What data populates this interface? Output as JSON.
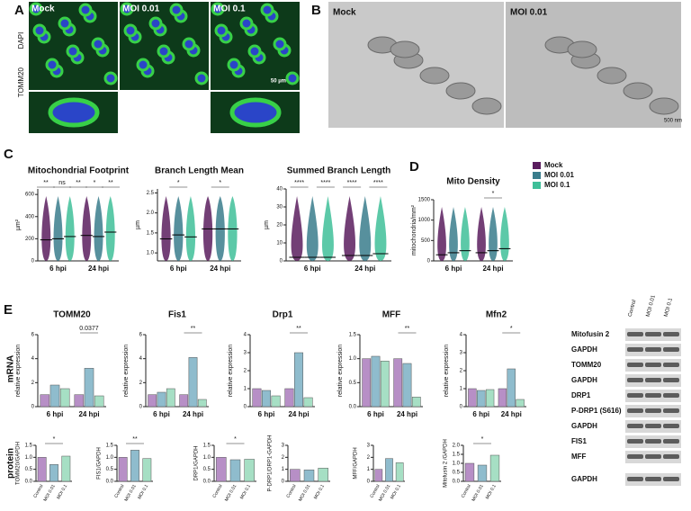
{
  "figure": {
    "A": {
      "letter": "A",
      "labels": [
        "Mock",
        "MOI 0.01",
        "MOI 0.1"
      ],
      "stains": [
        "DAPI",
        "TOMM20"
      ],
      "scale": "50 µm"
    },
    "B": {
      "letter": "B",
      "labels": [
        "Mock",
        "MOI 0.01"
      ],
      "scale": "500 nm"
    },
    "C": {
      "letter": "C"
    },
    "D": {
      "letter": "D"
    },
    "E": {
      "letter": "E",
      "rows": [
        "mRNA",
        "protein"
      ],
      "blot": {
        "columns": [
          "Control",
          "MOI 0.01",
          "MOI 0.1"
        ],
        "rows": [
          "Mitofusin 2",
          "GAPDH",
          "TOMM20",
          "GAPDH",
          "DRP1",
          "P-DRP1 (S616)",
          "GAPDH",
          "FIS1",
          "MFF",
          "GAPDH"
        ]
      }
    }
  },
  "chart_data": [
    {
      "type": "violin",
      "title": "Mitochondrial Footprint",
      "ylabel": "µm²",
      "categories": [
        "6 hpi",
        "24 hpi"
      ],
      "ylim": [
        0,
        650
      ],
      "yticks": [
        0,
        200,
        400,
        600
      ],
      "series": [
        {
          "name": "Mock",
          "color": "#5a1d5e",
          "values": [
            190,
            230
          ]
        },
        {
          "name": "MOI 0.01",
          "color": "#3a7d8c",
          "values": [
            200,
            220
          ]
        },
        {
          "name": "MOI 0.1",
          "color": "#3fbf99",
          "values": [
            220,
            260
          ]
        }
      ],
      "annotations": [
        "**",
        "ns",
        "**",
        "*",
        "**"
      ]
    },
    {
      "type": "violin",
      "title": "Branch Length Mean",
      "ylabel": "µm",
      "categories": [
        "6 hpi",
        "24 hpi"
      ],
      "ylim": [
        0.8,
        2.6
      ],
      "yticks": [
        {
          "value": 1,
          "label": "1.0"
        },
        1.5,
        {
          "value": 2,
          "label": "2.0"
        },
        2.5
      ],
      "series": [
        {
          "name": "Mock",
          "color": "#5a1d5e",
          "values": [
            1.35,
            1.6
          ]
        },
        {
          "name": "MOI 0.01",
          "color": "#3a7d8c",
          "values": [
            1.45,
            1.6
          ]
        },
        {
          "name": "MOI 0.1",
          "color": "#3fbf99",
          "values": [
            1.4,
            1.6
          ]
        }
      ],
      "annotations": [
        "*",
        "*"
      ]
    },
    {
      "type": "violin",
      "title": "Summed Branch Length",
      "ylabel": "µm",
      "categories": [
        "6 hpi",
        "24 hpi"
      ],
      "ylim": [
        0,
        40
      ],
      "yticks": [
        0,
        10,
        20,
        30,
        40
      ],
      "series": [
        {
          "name": "Mock",
          "color": "#5a1d5e",
          "values": [
            2,
            3
          ]
        },
        {
          "name": "MOI 0.01",
          "color": "#3a7d8c",
          "values": [
            2,
            3
          ]
        },
        {
          "name": "MOI 0.1",
          "color": "#3fbf99",
          "values": [
            2,
            4
          ]
        }
      ],
      "annotations": [
        "****",
        "****",
        "****",
        "****"
      ]
    },
    {
      "type": "violin",
      "title": "Mito Density",
      "ylabel": "mitochondria/mm²",
      "categories": [
        "6 hpi",
        "24 hpi"
      ],
      "ylim": [
        0,
        1500
      ],
      "yticks": [
        0,
        500,
        1000,
        1500
      ],
      "series": [
        {
          "name": "Mock",
          "color": "#5a1d5e",
          "values": [
            150,
            200
          ]
        },
        {
          "name": "MOI 0.01",
          "color": "#3a7d8c",
          "values": [
            200,
            250
          ]
        },
        {
          "name": "MOI 0.1",
          "color": "#3fbf99",
          "values": [
            250,
            300
          ]
        }
      ],
      "annotations": [
        "*"
      ]
    },
    {
      "type": "bar",
      "title": "TOMM20",
      "ylabel": "relative expression",
      "categories": [
        "6 hpi",
        "24 hpi"
      ],
      "ylim": [
        0,
        6
      ],
      "yticks": [
        0,
        2,
        4,
        6
      ],
      "series": [
        {
          "name": "Mock",
          "color": "#b78fc6",
          "values": [
            1,
            1
          ]
        },
        {
          "name": "MOI 0.01",
          "color": "#8fbccd",
          "values": [
            1.8,
            3.2
          ]
        },
        {
          "name": "MOI 0.1",
          "color": "#a6dfc4",
          "values": [
            1.5,
            0.9
          ]
        }
      ],
      "annotations": [
        "0.0377"
      ]
    },
    {
      "type": "bar",
      "title": "Fis1",
      "ylabel": "relative expression",
      "categories": [
        "6 hpi",
        "24 hpi"
      ],
      "ylim": [
        0,
        6
      ],
      "yticks": [
        0,
        2,
        4,
        6
      ],
      "series": [
        {
          "name": "Mock",
          "color": "#b78fc6",
          "values": [
            1,
            1
          ]
        },
        {
          "name": "MOI 0.01",
          "color": "#8fbccd",
          "values": [
            1.2,
            4.1
          ]
        },
        {
          "name": "MOI 0.1",
          "color": "#a6dfc4",
          "values": [
            1.5,
            0.6
          ]
        }
      ],
      "annotations": [
        "**"
      ]
    },
    {
      "type": "bar",
      "title": "Drp1",
      "ylabel": "relative expression",
      "categories": [
        "6 hpi",
        "24 hpi"
      ],
      "ylim": [
        0,
        4
      ],
      "yticks": [
        0,
        1,
        2,
        3,
        4
      ],
      "series": [
        {
          "name": "Mock",
          "color": "#b78fc6",
          "values": [
            1,
            1
          ]
        },
        {
          "name": "MOI 0.01",
          "color": "#8fbccd",
          "values": [
            0.9,
            3
          ]
        },
        {
          "name": "MOI 0.1",
          "color": "#a6dfc4",
          "values": [
            0.6,
            0.5
          ]
        }
      ],
      "annotations": [
        "**"
      ]
    },
    {
      "type": "bar",
      "title": "MFF",
      "ylabel": "relative expression",
      "categories": [
        "6 hpi",
        "24 hpi"
      ],
      "ylim": [
        0,
        1.5
      ],
      "yticks": [
        {
          "value": 0,
          "label": "0.0"
        },
        0.5,
        {
          "value": 1,
          "label": "1.0"
        },
        1.5
      ],
      "series": [
        {
          "name": "Mock",
          "color": "#b78fc6",
          "values": [
            1,
            1
          ]
        },
        {
          "name": "MOI 0.01",
          "color": "#8fbccd",
          "values": [
            1.05,
            0.9
          ]
        },
        {
          "name": "MOI 0.1",
          "color": "#a6dfc4",
          "values": [
            0.95,
            0.2
          ]
        }
      ],
      "annotations": [
        "**"
      ]
    },
    {
      "type": "bar",
      "title": "Mfn2",
      "ylabel": "relative expression",
      "categories": [
        "6 hpi",
        "24 hpi"
      ],
      "ylim": [
        0,
        4
      ],
      "yticks": [
        0,
        1,
        2,
        3,
        4
      ],
      "series": [
        {
          "name": "Mock",
          "color": "#b78fc6",
          "values": [
            1,
            1
          ]
        },
        {
          "name": "MOI 0.01",
          "color": "#8fbccd",
          "values": [
            0.9,
            2.1
          ]
        },
        {
          "name": "MOI 0.1",
          "color": "#a6dfc4",
          "values": [
            0.95,
            0.4
          ]
        }
      ],
      "annotations": [
        "*"
      ]
    },
    {
      "type": "pbar",
      "ylabel": "TOMM20/GAPDH",
      "categories": [
        "Control",
        "MOI 0.01",
        "MOI 0.1"
      ],
      "values": [
        1,
        0.7,
        1.05
      ],
      "colors": [
        "#b78fc6",
        "#8fbccd",
        "#a6dfc4"
      ],
      "ylim": [
        0,
        1.5
      ],
      "yticks": [
        {
          "value": 0,
          "label": "0.0"
        },
        0.5,
        {
          "value": 1,
          "label": "1.0"
        },
        1.5
      ],
      "annotations": [
        "*"
      ]
    },
    {
      "type": "pbar",
      "ylabel": "FIS1/GAPDH",
      "categories": [
        "Control",
        "MOI 0.01",
        "MOI 0.1"
      ],
      "values": [
        1,
        1.3,
        0.95
      ],
      "colors": [
        "#b78fc6",
        "#8fbccd",
        "#a6dfc4"
      ],
      "ylim": [
        0,
        1.5
      ],
      "yticks": [
        {
          "value": 0,
          "label": "0.0"
        },
        0.5,
        {
          "value": 1,
          "label": "1.0"
        },
        1.5
      ],
      "annotations": [
        "**"
      ]
    },
    {
      "type": "pbar",
      "ylabel": "DRP1/GAPDH",
      "categories": [
        "Control",
        "MOI 0.01",
        "MOI 0.1"
      ],
      "values": [
        1,
        0.9,
        0.92
      ],
      "colors": [
        "#b78fc6",
        "#8fbccd",
        "#a6dfc4"
      ],
      "ylim": [
        0,
        1.5
      ],
      "yticks": [
        {
          "value": 0,
          "label": "0.0"
        },
        0.5,
        {
          "value": 1,
          "label": "1.0"
        },
        1.5
      ],
      "annotations": [
        "*"
      ]
    },
    {
      "type": "pbar",
      "ylabel": "P-DRP1/DRP1-GAPDH",
      "categories": [
        "Control",
        "MOI 0.01",
        "MOI 0.1"
      ],
      "values": [
        1,
        0.95,
        1.1
      ],
      "colors": [
        "#b78fc6",
        "#8fbccd",
        "#a6dfc4"
      ],
      "ylim": [
        0,
        3
      ],
      "yticks": [
        0,
        1,
        2,
        3
      ]
    },
    {
      "type": "pbar",
      "ylabel": "MFF/GAPDH",
      "categories": [
        "Control",
        "MOI 0.01",
        "MOI 0.1"
      ],
      "values": [
        1,
        1.9,
        1.55
      ],
      "colors": [
        "#b78fc6",
        "#8fbccd",
        "#a6dfc4"
      ],
      "ylim": [
        0,
        3
      ],
      "yticks": [
        0,
        1,
        2,
        3
      ]
    },
    {
      "type": "pbar",
      "ylabel": "Mitofusin 2 /GAPDH",
      "categories": [
        "Control",
        "MOI 0.01",
        "MOI 0.1"
      ],
      "values": [
        1,
        0.9,
        1.45
      ],
      "colors": [
        "#b78fc6",
        "#8fbccd",
        "#a6dfc4"
      ],
      "ylim": [
        0,
        2
      ],
      "yticks": [
        {
          "value": 0,
          "label": "0.0"
        },
        0.5,
        {
          "value": 1,
          "label": "1.0"
        },
        1.5,
        {
          "value": 2,
          "label": "2.0"
        }
      ],
      "annotations": [
        "*"
      ]
    }
  ]
}
